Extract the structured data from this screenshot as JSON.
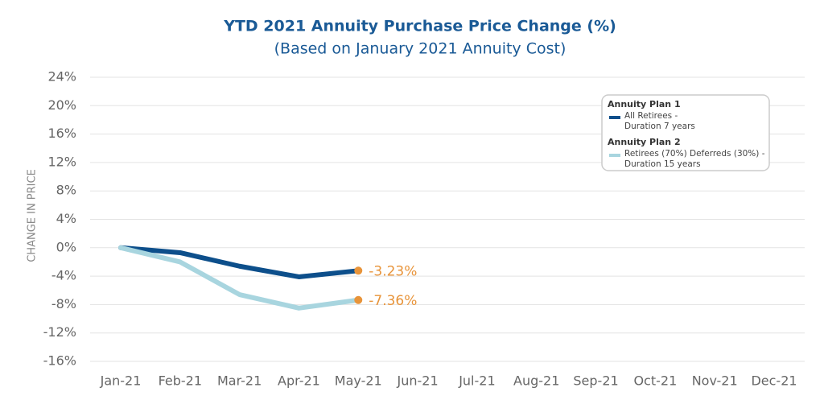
{
  "chart_data": {
    "type": "line",
    "title": "YTD 2021 Annuity Purchase Price Change (%)",
    "subtitle": "(Based on January 2021 Annuity Cost)",
    "y_label": "CHANGE IN PRICE",
    "categories": [
      "Jan-21",
      "Feb-21",
      "Mar-21",
      "Apr-21",
      "May-21",
      "Jun-21",
      "Jul-21",
      "Aug-21",
      "Sep-21",
      "Oct-21",
      "Nov-21",
      "Dec-21"
    ],
    "series": [
      {
        "group": "Annuity Plan 1",
        "name": "All Retirees - Duration 7 years",
        "color": "#0d4f8b",
        "values": [
          0,
          -0.7,
          -2.6,
          -4.1,
          -3.23,
          null,
          null,
          null,
          null,
          null,
          null,
          null
        ],
        "value_labels": [
          null,
          null,
          null,
          null,
          "-3.23%",
          null,
          null,
          null,
          null,
          null,
          null,
          null
        ]
      },
      {
        "group": "Annuity Plan 2",
        "name": "Retirees (70%) Deferreds (30%) - Duration 15 years",
        "color": "#a8d5df",
        "values": [
          0,
          -2.0,
          -6.6,
          -8.5,
          -7.36,
          null,
          null,
          null,
          null,
          null,
          null,
          null
        ],
        "value_labels": [
          null,
          null,
          null,
          null,
          "-7.36%",
          null,
          null,
          null,
          null,
          null,
          null,
          null
        ]
      }
    ],
    "label_color": "#e8943a",
    "ylim": [
      -16,
      24
    ],
    "yticks": [
      {
        "value": -16,
        "label": "-16%"
      },
      {
        "value": -12,
        "label": "-12%"
      },
      {
        "value": -8,
        "label": "-8%"
      },
      {
        "value": -4,
        "label": "-4%"
      },
      {
        "value": 0,
        "label": "0%"
      },
      {
        "value": 4,
        "label": "4%"
      },
      {
        "value": 8,
        "label": "8%"
      },
      {
        "value": 12,
        "label": "12%"
      },
      {
        "value": 16,
        "label": "16%"
      },
      {
        "value": 20,
        "label": "20%"
      },
      {
        "value": 24,
        "label": "24%"
      }
    ],
    "grid": true,
    "legend": "upper right"
  }
}
